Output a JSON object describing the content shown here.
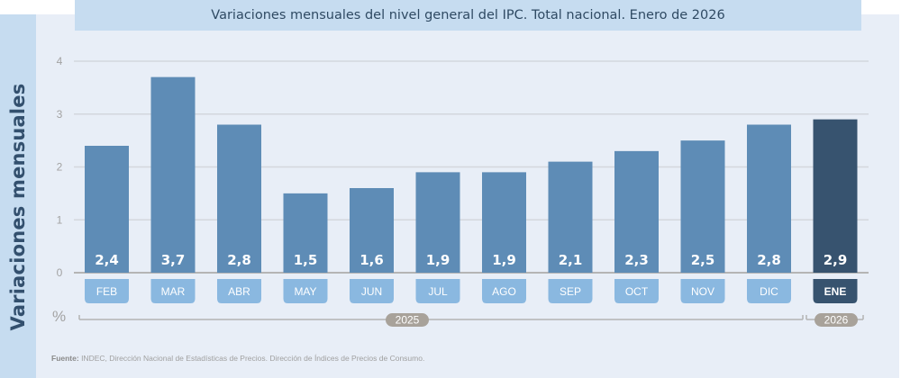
{
  "chart_data": {
    "type": "bar",
    "title": "Variaciones mensuales del nivel general del IPC. Total nacional. Enero de 2026",
    "ylabel": "Variaciones mensuales",
    "yunit": "%",
    "ylim": [
      0,
      4
    ],
    "yticks": [
      "0",
      "1",
      "2",
      "3",
      "4"
    ],
    "grid": true,
    "categories": [
      "FEB",
      "MAR",
      "ABR",
      "MAY",
      "JUN",
      "JUL",
      "AGO",
      "SEP",
      "OCT",
      "NOV",
      "DIC",
      "ENE"
    ],
    "values": [
      2.4,
      3.7,
      2.8,
      1.5,
      1.6,
      1.9,
      1.9,
      2.1,
      2.3,
      2.5,
      2.8,
      2.9
    ],
    "value_labels": [
      "2,4",
      "3,7",
      "2,8",
      "1,5",
      "1,6",
      "1,9",
      "1,9",
      "2,1",
      "2,3",
      "2,5",
      "2,8",
      "2,9"
    ],
    "highlight_index": 11,
    "year_groups": [
      {
        "label": "2025",
        "from": 0,
        "to": 10
      },
      {
        "label": "2026",
        "from": 11,
        "to": 11
      }
    ],
    "colors": {
      "bar": "#5E8CB6",
      "bar_highlight": "#37536F",
      "month_label": "#8AB8E0",
      "month_label_highlight": "#37536F",
      "year_pill": "#A8A29A"
    }
  },
  "source": {
    "label": "Fuente:",
    "text": " INDEC, Dirección Nacional de Estadísticas de Precios. Dirección de Índices de Precios de Consumo."
  }
}
